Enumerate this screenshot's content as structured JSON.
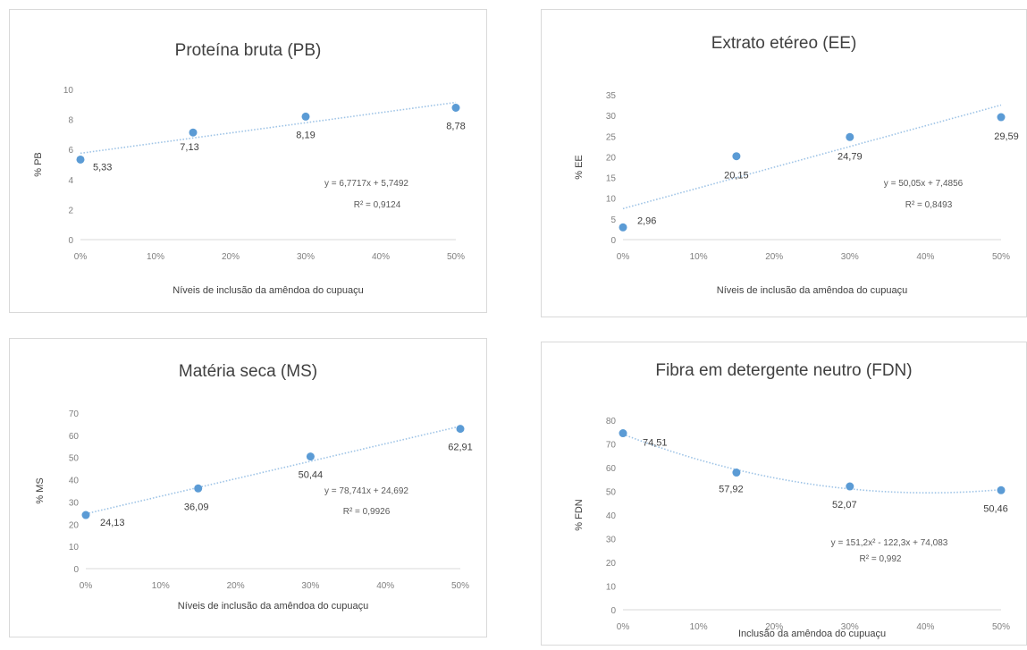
{
  "chart_data": [
    {
      "type": "scatter",
      "title": "Proteína bruta (PB)",
      "xlabel": "Níveis de inclusão da amêndoa do cupuaçu",
      "ylabel": "% PB",
      "x_ticks": [
        "0%",
        "10%",
        "20%",
        "30%",
        "40%",
        "50%"
      ],
      "y_ticks": [
        "0",
        "2",
        "4",
        "6",
        "8",
        "10"
      ],
      "xlim": [
        0,
        0.5
      ],
      "ylim": [
        0,
        10
      ],
      "x": [
        0,
        0.15,
        0.3,
        0.5
      ],
      "y": [
        5.33,
        7.13,
        8.19,
        8.78
      ],
      "data_labels": [
        "5,33",
        "7,13",
        "8,19",
        "8,78"
      ],
      "trendline": {
        "kind": "linear",
        "coef": [
          6.7717,
          5.7492
        ],
        "equation": "y = 6,7717x + 5,7492",
        "r2": "R² = 0,9124"
      },
      "grid": false,
      "color": "#5b9bd5"
    },
    {
      "type": "scatter",
      "title": "Extrato etéreo (EE)",
      "xlabel": "Níveis de inclusão da amêndoa do cupuaçu",
      "ylabel": "% EE",
      "x_ticks": [
        "0%",
        "10%",
        "20%",
        "30%",
        "40%",
        "50%"
      ],
      "y_ticks": [
        "0",
        "5",
        "10",
        "15",
        "20",
        "25",
        "30",
        "35"
      ],
      "xlim": [
        0,
        0.5
      ],
      "ylim": [
        0,
        35
      ],
      "x": [
        0,
        0.15,
        0.3,
        0.5
      ],
      "y": [
        2.96,
        20.15,
        24.79,
        29.59
      ],
      "data_labels": [
        "2,96",
        "20,15",
        "24,79",
        "29,59"
      ],
      "trendline": {
        "kind": "linear",
        "coef": [
          50.05,
          7.4856
        ],
        "equation": "y = 50,05x + 7,4856",
        "r2": "R² = 0,8493"
      },
      "grid": false,
      "color": "#5b9bd5"
    },
    {
      "type": "scatter",
      "title": "Matéria seca  (MS)",
      "xlabel": "Níveis de inclusão da amêndoa do cupuaçu",
      "ylabel": "% MS",
      "x_ticks": [
        "0%",
        "10%",
        "20%",
        "30%",
        "40%",
        "50%"
      ],
      "y_ticks": [
        "0",
        "10",
        "20",
        "30",
        "40",
        "50",
        "60",
        "70"
      ],
      "xlim": [
        0,
        0.5
      ],
      "ylim": [
        0,
        70
      ],
      "x": [
        0,
        0.15,
        0.3,
        0.5
      ],
      "y": [
        24.13,
        36.09,
        50.44,
        62.91
      ],
      "data_labels": [
        "24,13",
        "36,09",
        "50,44",
        "62,91"
      ],
      "trendline": {
        "kind": "linear",
        "coef": [
          78.741,
          24.692
        ],
        "equation": "y = 78,741x + 24,692",
        "r2": "R² = 0,9926"
      },
      "grid": false,
      "color": "#5b9bd5"
    },
    {
      "type": "scatter",
      "title": "Fibra em detergente neutro (FDN)",
      "xlabel": "Inclusão da amêndoa do cupuaçu",
      "ylabel": "% FDN",
      "x_ticks": [
        "0%",
        "10%",
        "20%",
        "30%",
        "40%",
        "50%"
      ],
      "y_ticks": [
        "0",
        "10",
        "20",
        "30",
        "40",
        "50",
        "60",
        "70",
        "80"
      ],
      "xlim": [
        0,
        0.5
      ],
      "ylim": [
        0,
        80
      ],
      "x": [
        0,
        0.15,
        0.3,
        0.5
      ],
      "y": [
        74.51,
        57.92,
        52.07,
        50.46
      ],
      "data_labels": [
        "74,51",
        "57,92",
        "52,07",
        "50,46"
      ],
      "trendline": {
        "kind": "polynomial2",
        "coef": [
          151.2,
          -122.3,
          74.083
        ],
        "equation": "y = 151,2x² - 122,3x + 74,083",
        "r2": "R² = 0,992"
      },
      "grid": false,
      "color": "#5b9bd5"
    }
  ]
}
